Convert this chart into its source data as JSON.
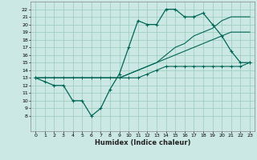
{
  "background_color": "#cce8e4",
  "grid_color": "#99ccbb",
  "line_color": "#006655",
  "xlabel": "Humidex (Indice chaleur)",
  "xlim": [
    -0.5,
    23.5
  ],
  "ylim": [
    6,
    23
  ],
  "yticks": [
    8,
    9,
    10,
    11,
    12,
    13,
    14,
    15,
    16,
    17,
    18,
    19,
    20,
    21,
    22
  ],
  "xticks": [
    0,
    1,
    2,
    3,
    4,
    5,
    6,
    7,
    8,
    9,
    10,
    11,
    12,
    13,
    14,
    15,
    16,
    17,
    18,
    19,
    20,
    21,
    22,
    23
  ],
  "x": [
    0,
    1,
    2,
    3,
    4,
    5,
    6,
    7,
    8,
    9,
    10,
    11,
    12,
    13,
    14,
    15,
    16,
    17,
    18,
    19,
    20,
    21,
    22,
    23
  ],
  "line1": [
    13,
    12.5,
    12,
    12,
    10,
    10,
    8,
    9,
    11.5,
    13.5,
    17,
    20.5,
    20,
    20,
    22,
    22,
    21,
    21,
    21.5,
    20,
    18.5,
    16.5,
    15,
    15
  ],
  "line2": [
    13,
    13,
    13,
    13,
    13,
    13,
    13,
    13,
    13,
    13,
    13.5,
    14,
    14.5,
    15,
    15.5,
    16,
    16.5,
    17,
    17.5,
    18,
    18.5,
    19,
    19,
    19
  ],
  "line3": [
    13,
    13,
    13,
    13,
    13,
    13,
    13,
    13,
    13,
    13,
    13.5,
    14,
    14.5,
    15,
    16,
    17,
    17.5,
    18.5,
    19,
    19.5,
    20.5,
    21,
    21,
    21
  ],
  "line4": [
    13,
    13,
    13,
    13,
    13,
    13,
    13,
    13,
    13,
    13,
    13,
    13,
    13.5,
    14,
    14.5,
    14.5,
    14.5,
    14.5,
    14.5,
    14.5,
    14.5,
    14.5,
    14.5,
    15
  ]
}
